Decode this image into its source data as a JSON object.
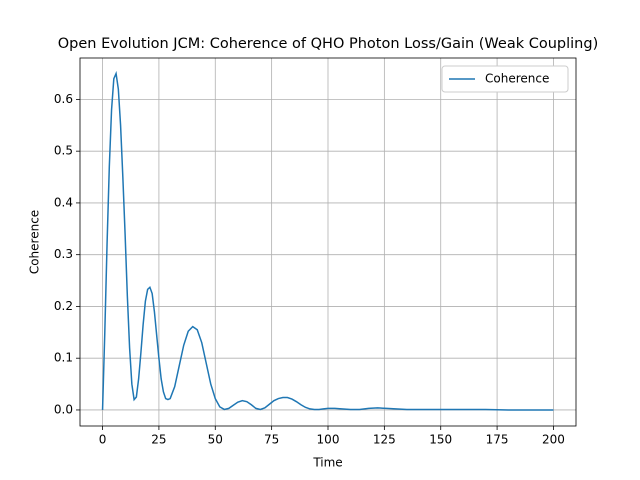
{
  "chart_data": {
    "type": "line",
    "title": "Open Evolution JCM: Coherence of QHO Photon Loss/Gain (Weak Coupling)",
    "x_label": "Time",
    "y_label": "Coherence",
    "xlim": [
      -10,
      210
    ],
    "ylim": [
      -0.031,
      0.68
    ],
    "xticks": [
      0,
      25,
      50,
      75,
      100,
      125,
      150,
      175,
      200
    ],
    "yticks": [
      {
        "value": 0,
        "label": "0.0"
      },
      0.1,
      0.2,
      0.3,
      0.4,
      0.5,
      0.6
    ],
    "grid": true,
    "legend": "upper right",
    "x": [
      0,
      1,
      2,
      3,
      4,
      5,
      6,
      7,
      8,
      9,
      10,
      11,
      12,
      13,
      14,
      15,
      16,
      17,
      18,
      19,
      20,
      21,
      22,
      23,
      24,
      25,
      26,
      27,
      28,
      29,
      30,
      32,
      34,
      36,
      38,
      40,
      42,
      44,
      46,
      48,
      50,
      52,
      54,
      56,
      58,
      60,
      62,
      64,
      66,
      68,
      70,
      72,
      74,
      76,
      78,
      80,
      82,
      84,
      86,
      88,
      90,
      92,
      94,
      96,
      98,
      100,
      103,
      106,
      110,
      114,
      118,
      122,
      126,
      130,
      135,
      140,
      150,
      160,
      170,
      180,
      190,
      200
    ],
    "series": [
      {
        "name": "Coherence",
        "color": "#1f77b4",
        "values": [
          0,
          0.15,
          0.32,
          0.47,
          0.58,
          0.64,
          0.65,
          0.62,
          0.55,
          0.45,
          0.34,
          0.22,
          0.12,
          0.05,
          0.02,
          0.025,
          0.06,
          0.11,
          0.165,
          0.21,
          0.233,
          0.237,
          0.225,
          0.19,
          0.145,
          0.1,
          0.06,
          0.035,
          0.022,
          0.02,
          0.022,
          0.045,
          0.085,
          0.125,
          0.152,
          0.161,
          0.155,
          0.13,
          0.09,
          0.05,
          0.022,
          0.006,
          0.001,
          0.003,
          0.009,
          0.015,
          0.018,
          0.016,
          0.01,
          0.003,
          0.001,
          0.004,
          0.011,
          0.018,
          0.022,
          0.024,
          0.024,
          0.021,
          0.016,
          0.01,
          0.005,
          0.002,
          0.001,
          0.001,
          0.002,
          0.003,
          0.003,
          0.002,
          0.001,
          0.001,
          0.003,
          0.004,
          0.003,
          0.002,
          0.001,
          0.001,
          0.001,
          0.001,
          0.001,
          0,
          0,
          0
        ]
      }
    ]
  }
}
